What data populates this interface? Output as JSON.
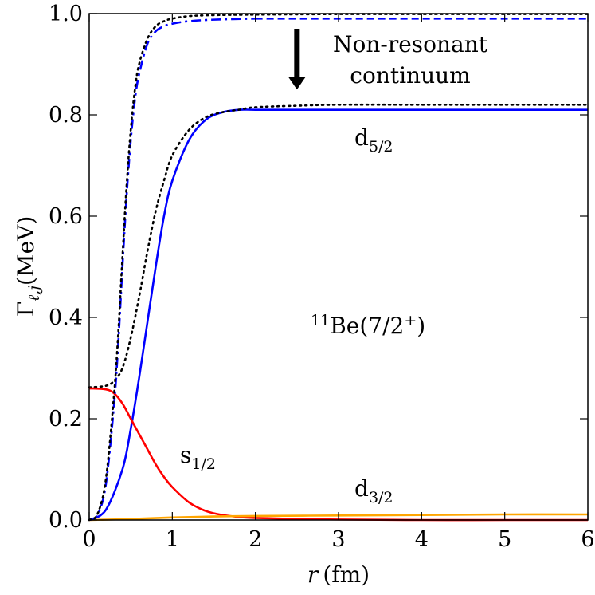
{
  "chart_data": {
    "type": "line",
    "xlabel": {
      "var": "r",
      "unit": "(fm)"
    },
    "ylabel": {
      "main": "Γ",
      "sub": "ℓ,j",
      "unit": "(MeV)"
    },
    "xlim": [
      0,
      6
    ],
    "ylim": [
      0,
      1.0
    ],
    "xticks": [
      0,
      1,
      2,
      3,
      4,
      5,
      6
    ],
    "yticks": [
      0.0,
      0.2,
      0.4,
      0.6,
      0.8,
      1.0
    ],
    "xtick_labels": [
      "0",
      "1",
      "2",
      "3",
      "4",
      "5",
      "6"
    ],
    "ytick_labels": [
      "0.0",
      "0.2",
      "0.4",
      "0.6",
      "0.8",
      "1.0"
    ],
    "grid": false,
    "legend": "none",
    "series": [
      {
        "key": "d52_blue",
        "color": "#0000ff",
        "dash": "solid",
        "x": [
          0,
          0.2,
          0.4,
          0.5,
          0.6,
          0.7,
          0.8,
          0.9,
          1.0,
          1.2,
          1.4,
          1.6,
          1.8,
          2.0,
          2.5,
          3.0,
          4.0,
          5.0,
          6.0
        ],
        "y": [
          0,
          0.02,
          0.1,
          0.18,
          0.28,
          0.39,
          0.5,
          0.6,
          0.67,
          0.75,
          0.79,
          0.805,
          0.81,
          0.81,
          0.81,
          0.81,
          0.81,
          0.81,
          0.81
        ]
      },
      {
        "key": "total_black_lower",
        "color": "#000000",
        "dash": "dotted",
        "x": [
          0,
          0.2,
          0.3,
          0.4,
          0.5,
          0.6,
          0.7,
          0.8,
          0.9,
          1.0,
          1.2,
          1.4,
          1.6,
          1.8,
          2.0,
          2.5,
          3.0,
          4.0,
          5.0,
          6.0
        ],
        "y": [
          0.262,
          0.265,
          0.275,
          0.3,
          0.36,
          0.44,
          0.53,
          0.61,
          0.67,
          0.72,
          0.77,
          0.795,
          0.805,
          0.81,
          0.815,
          0.818,
          0.82,
          0.82,
          0.82,
          0.82
        ]
      },
      {
        "key": "s12_red",
        "color": "#ff0000",
        "dash": "solid",
        "x": [
          0,
          0.2,
          0.3,
          0.4,
          0.5,
          0.6,
          0.7,
          0.8,
          0.9,
          1.0,
          1.2,
          1.4,
          1.6,
          1.8,
          2.0,
          2.5,
          3.0,
          4.0,
          5.0,
          6.0
        ],
        "y": [
          0.26,
          0.258,
          0.25,
          0.23,
          0.2,
          0.17,
          0.14,
          0.11,
          0.085,
          0.065,
          0.035,
          0.018,
          0.01,
          0.006,
          0.004,
          0.002,
          0.001,
          0,
          0,
          0
        ]
      },
      {
        "key": "d32_orange",
        "color": "#ffa500",
        "dash": "solid",
        "x": [
          0,
          0.5,
          1.0,
          1.5,
          2.0,
          3.0,
          4.0,
          5.0,
          6.0
        ],
        "y": [
          0,
          0.002,
          0.005,
          0.007,
          0.008,
          0.009,
          0.01,
          0.011,
          0.011
        ]
      },
      {
        "key": "upper_blue_dashdot",
        "color": "#0000ff",
        "dash": "dashdot",
        "x": [
          0,
          0.1,
          0.2,
          0.3,
          0.35,
          0.4,
          0.45,
          0.5,
          0.55,
          0.6,
          0.7,
          0.8,
          0.9,
          1.0,
          1.2,
          1.5,
          2.0
        ],
        "y": [
          0,
          0.01,
          0.07,
          0.23,
          0.35,
          0.5,
          0.64,
          0.75,
          0.83,
          0.88,
          0.94,
          0.965,
          0.975,
          0.98,
          0.985,
          0.988,
          0.99
        ]
      },
      {
        "key": "upper_blue_dashed",
        "color": "#0000ff",
        "dash": "dashed",
        "x": [
          2.0,
          3.0,
          4.0,
          5.0,
          6.0
        ],
        "y": [
          0.99,
          0.99,
          0.99,
          0.99,
          0.99
        ]
      },
      {
        "key": "upper_black_dotted",
        "color": "#000000",
        "dash": "dotted",
        "x": [
          0,
          0.1,
          0.2,
          0.3,
          0.35,
          0.4,
          0.45,
          0.5,
          0.55,
          0.6,
          0.7,
          0.8,
          0.9,
          1.0,
          1.2,
          1.5,
          2.0,
          3.0,
          4.0,
          5.0,
          6.0
        ],
        "y": [
          0,
          0.012,
          0.08,
          0.25,
          0.37,
          0.52,
          0.66,
          0.77,
          0.85,
          0.9,
          0.95,
          0.975,
          0.985,
          0.99,
          0.995,
          0.997,
          0.998,
          0.999,
          0.999,
          0.999,
          0.999
        ]
      }
    ],
    "annotations": {
      "nonres_line1": "Non-resonant",
      "nonres_line2": "continuum",
      "d52": {
        "base": "d",
        "sub": "5/2",
        "x": 2.3,
        "y": 0.745
      },
      "s12": {
        "base": "s",
        "sub": "1/2",
        "x": 1.05,
        "y": 0.1
      },
      "d32": {
        "base": "d",
        "sub": "3/2",
        "x": 2.3,
        "y": 0.04
      },
      "nucleus": {
        "sup": "11",
        "main": "Be(7/2",
        "state_sup": "+",
        "close": ")"
      },
      "arrow": {
        "x": 2.5,
        "y_from": 0.97,
        "y_to": 0.85
      }
    }
  }
}
